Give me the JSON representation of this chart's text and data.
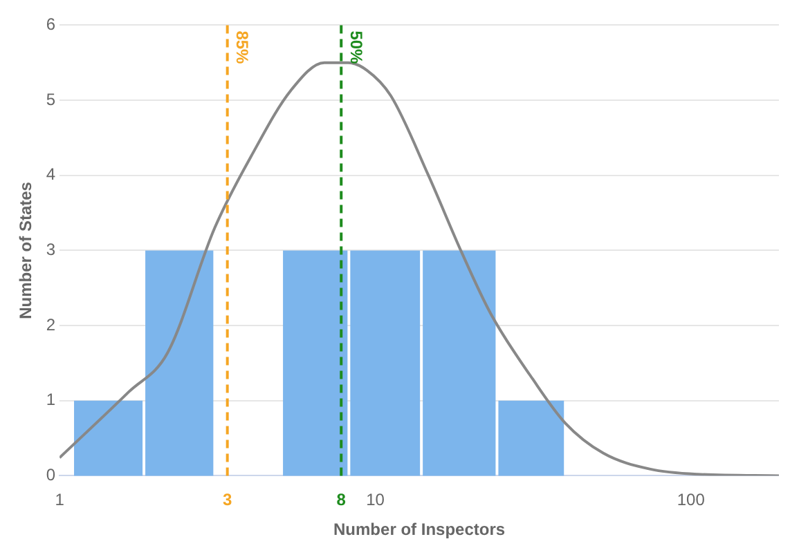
{
  "chart_data": {
    "type": "histogram",
    "xlabel": "Number of Inspectors",
    "ylabel": "Number of States",
    "bins": [
      1.1,
      1.85,
      3.1,
      5.05,
      8.25,
      14,
      24.3,
      40
    ],
    "values": [
      1,
      3,
      0,
      3,
      3,
      3,
      1
    ],
    "color": "#7cb5ec",
    "series": [
      {
        "type": "line",
        "color": "#888888",
        "x": [
          1.0,
          1.66,
          2.2,
          3.1,
          4.1,
          5.4,
          6.9,
          8.2,
          9.4,
          11.2,
          14.7,
          18.8,
          23.2,
          31.5,
          40,
          52.8,
          74,
          105,
          190
        ],
        "values": [
          0.24,
          1.12,
          1.64,
          3.3,
          4.3,
          5.13,
          5.5,
          5.5,
          5.4,
          5.06,
          4.01,
          2.97,
          2.16,
          1.29,
          0.7,
          0.3,
          0.09,
          0.02,
          0
        ]
      }
    ],
    "log": "x",
    "xlim": [
      1,
      190
    ],
    "xticks": [
      1,
      {
        "value": 3.4,
        "label": "3"
      },
      {
        "value": 7.8,
        "label": "8"
      },
      10,
      100
    ],
    "ylim": [
      0,
      6
    ],
    "yticks": [
      0,
      1,
      2,
      3,
      4,
      5,
      6
    ],
    "grid": "y",
    "ref_lines": [
      {
        "axis": "x",
        "value": 3.4,
        "color": "#f5a623",
        "line_style": "dashed"
      },
      {
        "axis": "x",
        "value": 7.8,
        "color": "#1e8c1e",
        "line_style": "dashed"
      }
    ],
    "annotations": [
      {
        "text": "85%",
        "x": 3.4,
        "y": 6
      },
      {
        "text": "50%",
        "x": 7.8,
        "y": 6
      }
    ],
    "legend": false,
    "marker": "none"
  }
}
